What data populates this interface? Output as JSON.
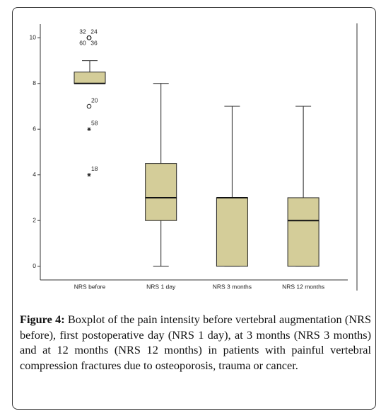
{
  "chart_data": {
    "type": "boxplot",
    "categories": [
      "NRS before",
      "NRS 1 day",
      "NRS 3 months",
      "NRS 12 months"
    ],
    "min": [
      8,
      0,
      0,
      0
    ],
    "q1": [
      8,
      2,
      0,
      0
    ],
    "median": [
      8,
      3,
      3,
      2
    ],
    "q3": [
      8.5,
      4.5,
      3,
      3
    ],
    "max": [
      9,
      8,
      7,
      7
    ],
    "outliers": [
      {
        "category": 0,
        "value": 10,
        "label": "32",
        "marker": "circle"
      },
      {
        "category": 0,
        "value": 10,
        "label": "24",
        "marker": "circle"
      },
      {
        "category": 0,
        "value": 10,
        "label": "60",
        "marker": "circle"
      },
      {
        "category": 0,
        "value": 10,
        "label": "36",
        "marker": "circle"
      },
      {
        "category": 0,
        "value": 7,
        "label": "20",
        "marker": "circle"
      },
      {
        "category": 0,
        "value": 6,
        "label": "58",
        "marker": "star"
      },
      {
        "category": 0,
        "value": 4,
        "label": "18",
        "marker": "star"
      }
    ],
    "color": "#d4cd99",
    "ylim": [
      -0.6,
      10.6
    ],
    "yticks": [
      0,
      2,
      4,
      6,
      8,
      10
    ]
  },
  "caption": {
    "label": "Figure 4:",
    "text": "Boxplot of the pain intensity before vertebral augmentation (NRS before), first postoperative day (NRS 1 day), at 3 months (NRS 3 months) and at 12 months (NRS 12 months) in patients with painful vertebral compression fractures due to osteoporosis, trauma or cancer."
  }
}
